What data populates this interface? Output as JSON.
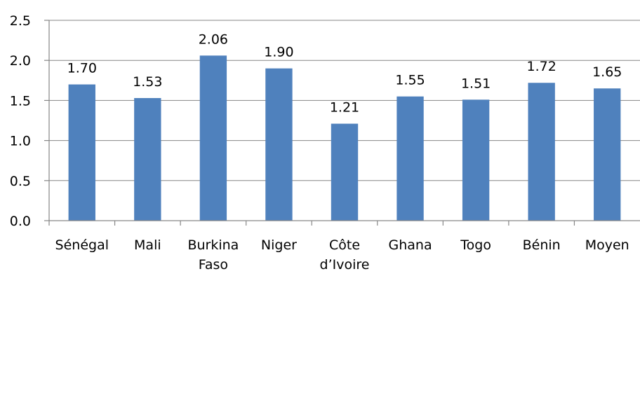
{
  "chart_data": {
    "type": "bar",
    "categories": [
      [
        "Sénégal"
      ],
      [
        "Mali"
      ],
      [
        "Burkina",
        "Faso"
      ],
      [
        "Niger"
      ],
      [
        "Côte",
        "d’Ivoire"
      ],
      [
        "Ghana"
      ],
      [
        "Togo"
      ],
      [
        "Bénin"
      ],
      [
        "Moyen"
      ]
    ],
    "values": [
      1.7,
      1.53,
      2.06,
      1.9,
      1.21,
      1.55,
      1.51,
      1.72,
      1.65
    ],
    "data_labels": [
      "1.70",
      "1.53",
      "2.06",
      "1.90",
      "1.21",
      "1.55",
      "1.51",
      "1.72",
      "1.65"
    ],
    "title": "",
    "xlabel": "",
    "ylabel": "",
    "ylim": [
      0,
      2.5
    ],
    "yticks": [
      0.0,
      0.5,
      1.0,
      1.5,
      2.0,
      2.5
    ],
    "ytick_labels": [
      "0.0",
      "0.5",
      "1.0",
      "1.5",
      "2.0",
      "2.5"
    ],
    "grid": true,
    "legend": "none",
    "colors": {
      "bar": "#4F81BD",
      "axis": "#868686"
    }
  }
}
